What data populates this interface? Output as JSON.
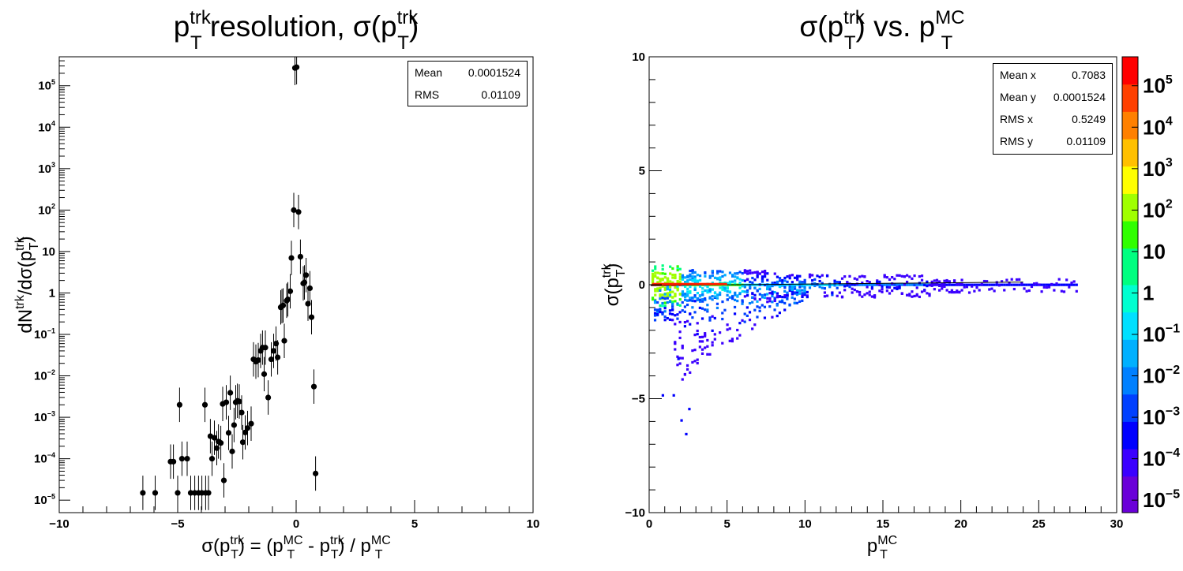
{
  "chart_data": [
    {
      "type": "scatter",
      "title": {
        "main": "p",
        "sub": "T",
        "sup": "trk",
        "rest": " resolution, σ(p",
        "sub2": "T",
        "sup2": "trk",
        "close": ")"
      },
      "xlabel": {
        "pre": "σ(p",
        "sub1": "T",
        "sup1": "trk",
        "mid": ") = (p",
        "sub2": "T",
        "sup2": "MC",
        "mid2": " - p",
        "sub3": "T",
        "sup3": "trk",
        "mid3": ") / p",
        "sub4": "T",
        "sup4": "MC"
      },
      "ylabel": {
        "pre": "dN",
        "sup1": "trk",
        "mid": "/dσ(p",
        "sub2": "T",
        "sup2": "trk",
        "close": ")"
      },
      "xlim": [
        -10,
        10
      ],
      "ylim": [
        5e-06,
        500000
      ],
      "yscale": "log",
      "xticks": [
        "−10",
        "−5",
        "0",
        "5",
        "10"
      ],
      "yticks": [
        {
          "base": "10",
          "exp": "−5"
        },
        {
          "base": "10",
          "exp": "−4"
        },
        {
          "base": "10",
          "exp": "−3"
        },
        {
          "base": "10",
          "exp": "−2"
        },
        {
          "base": "10",
          "exp": "−1"
        },
        {
          "base": "1",
          "exp": ""
        },
        {
          "base": "10",
          "exp": ""
        },
        {
          "base": "10",
          "exp": "2"
        },
        {
          "base": "10",
          "exp": "3"
        },
        {
          "base": "10",
          "exp": "4"
        },
        {
          "base": "10",
          "exp": "5"
        }
      ],
      "stats": [
        {
          "label": "Mean",
          "value": "0.0001524"
        },
        {
          "label": "RMS",
          "value": "0.01109"
        }
      ],
      "points": [
        [
          -6.47,
          1.5e-05
        ],
        [
          -5.95,
          1.5e-05
        ],
        [
          -5.3,
          8.5e-05
        ],
        [
          -5.18,
          8.5e-05
        ],
        [
          -5.0,
          1.5e-05
        ],
        [
          -4.92,
          0.002
        ],
        [
          -4.82,
          0.0001
        ],
        [
          -4.6,
          0.0001
        ],
        [
          -4.45,
          1.5e-05
        ],
        [
          -4.28,
          1.5e-05
        ],
        [
          -4.12,
          1.5e-05
        ],
        [
          -3.98,
          1.5e-05
        ],
        [
          -3.85,
          0.002
        ],
        [
          -3.82,
          1.5e-05
        ],
        [
          -3.7,
          1.5e-05
        ],
        [
          -3.62,
          0.00035
        ],
        [
          -3.55,
          0.0001
        ],
        [
          -3.45,
          0.00032
        ],
        [
          -3.35,
          0.00018
        ],
        [
          -3.28,
          0.00026
        ],
        [
          -3.18,
          0.00024
        ],
        [
          -3.1,
          0.0021
        ],
        [
          -3.05,
          3e-05
        ],
        [
          -2.95,
          0.0023
        ],
        [
          -2.85,
          0.00042
        ],
        [
          -2.78,
          0.0039
        ],
        [
          -2.7,
          0.00015
        ],
        [
          -2.62,
          0.00065
        ],
        [
          -2.55,
          0.0023
        ],
        [
          -2.48,
          0.0025
        ],
        [
          -2.4,
          0.0024
        ],
        [
          -2.3,
          0.0013
        ],
        [
          -2.25,
          0.00025
        ],
        [
          -2.15,
          0.00043
        ],
        [
          -2.05,
          0.00055
        ],
        [
          -1.9,
          0.0007
        ],
        [
          -1.8,
          0.025
        ],
        [
          -1.7,
          0.022
        ],
        [
          -1.6,
          0.024
        ],
        [
          -1.5,
          0.04
        ],
        [
          -1.42,
          0.048
        ],
        [
          -1.35,
          0.011
        ],
        [
          -1.3,
          0.048
        ],
        [
          -1.18,
          0.003
        ],
        [
          -1.05,
          0.025
        ],
        [
          -0.95,
          0.04
        ],
        [
          -0.85,
          0.06
        ],
        [
          -0.78,
          0.028
        ],
        [
          -0.65,
          0.45
        ],
        [
          -0.6,
          0.48
        ],
        [
          -0.55,
          0.5
        ],
        [
          -0.5,
          0.07
        ],
        [
          -0.4,
          0.65
        ],
        [
          -0.35,
          0.7
        ],
        [
          -0.25,
          1.1
        ],
        [
          -0.2,
          7
        ],
        [
          -0.1,
          100
        ],
        [
          -0.05,
          268000
        ],
        [
          0.02,
          280000
        ],
        [
          0.1,
          90
        ],
        [
          0.18,
          7.5
        ],
        [
          0.3,
          1.7
        ],
        [
          0.35,
          1.8
        ],
        [
          0.42,
          2.7
        ],
        [
          0.5,
          0.55
        ],
        [
          0.58,
          1.3
        ],
        [
          0.65,
          0.26
        ],
        [
          0.75,
          0.0055
        ],
        [
          0.82,
          4.4e-05
        ]
      ]
    },
    {
      "type": "heatmap",
      "title": {
        "pre": "σ(p",
        "sub1": "T",
        "sup1": "trk",
        "mid": ") vs. p",
        "sub2": "T",
        "sup2": "MC"
      },
      "xlabel": {
        "pre": "p",
        "sub": "T",
        "sup": "MC"
      },
      "ylabel": {
        "pre": "σ(p",
        "sub": "T",
        "sup": "trk",
        "close": ")"
      },
      "xlim": [
        0,
        30
      ],
      "ylim": [
        -10,
        10
      ],
      "xticks": [
        "0",
        "5",
        "10",
        "15",
        "20",
        "25",
        "30"
      ],
      "yticks": [
        "−10",
        "−5",
        "0",
        "5",
        "10"
      ],
      "zscale": "log",
      "zlim": [
        5e-06,
        500000
      ],
      "colorbar_ticks": [
        {
          "base": "10",
          "exp": "−5"
        },
        {
          "base": "10",
          "exp": "−4"
        },
        {
          "base": "10",
          "exp": "−3"
        },
        {
          "base": "10",
          "exp": "−2"
        },
        {
          "base": "10",
          "exp": "−1"
        },
        {
          "base": "1",
          "exp": ""
        },
        {
          "base": "10",
          "exp": ""
        },
        {
          "base": "10",
          "exp": "2"
        },
        {
          "base": "10",
          "exp": "3"
        },
        {
          "base": "10",
          "exp": "4"
        },
        {
          "base": "10",
          "exp": "5"
        }
      ],
      "stats": [
        {
          "label": "Mean x",
          "value": "0.7083"
        },
        {
          "label": "Mean y",
          "value": "0.0001524"
        },
        {
          "label": "RMS x",
          "value": "0.5249"
        },
        {
          "label": "RMS y",
          "value": "0.01109"
        }
      ],
      "palette": [
        "#6a00d8",
        "#3b00ff",
        "#0000ff",
        "#0040ff",
        "#0080ff",
        "#00b0ff",
        "#00e0ff",
        "#00ffd0",
        "#00ff80",
        "#30ff00",
        "#a0ff00",
        "#ffff00",
        "#ffc000",
        "#ff8000",
        "#ff4000",
        "#ff0000"
      ]
    }
  ]
}
